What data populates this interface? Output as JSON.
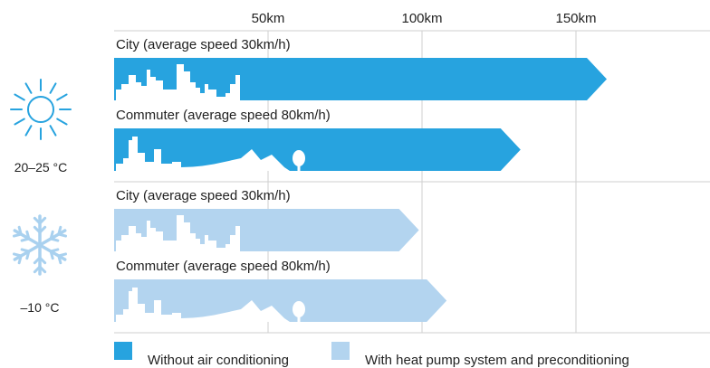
{
  "chart_data": {
    "type": "bar",
    "orientation": "horizontal",
    "unit": "km",
    "xlim": [
      0,
      190
    ],
    "x_ticks": [
      {
        "value": 50,
        "label": "50km"
      },
      {
        "value": 100,
        "label": "100km"
      },
      {
        "value": 150,
        "label": "150km"
      }
    ],
    "grid": true,
    "legend_placement": "bottom",
    "groups": [
      {
        "temperature": "20–25 °C",
        "icon": "sun-icon",
        "bars": [
          {
            "category": "City (average speed 30km/h)",
            "series": "Without air conditioning",
            "value": 160,
            "scene": "city-skyline"
          },
          {
            "category": "Commuter (average speed 80km/h)",
            "series": "Without air conditioning",
            "value": 132,
            "scene": "commuter-landscape"
          }
        ]
      },
      {
        "temperature": "–10 °C",
        "icon": "snowflake-icon",
        "bars": [
          {
            "category": "City (average speed 30km/h)",
            "series": "With heat pump system and preconditioning",
            "value": 99,
            "scene": "city-skyline"
          },
          {
            "category": "Commuter (average speed 80km/h)",
            "series": "With heat pump system and preconditioning",
            "value": 108,
            "scene": "commuter-landscape"
          }
        ]
      }
    ],
    "legend": [
      {
        "name": "Without air conditioning",
        "color": "#27a3df"
      },
      {
        "name": "With heat pump system and preconditioning",
        "color": "#b3d4ef"
      }
    ]
  }
}
